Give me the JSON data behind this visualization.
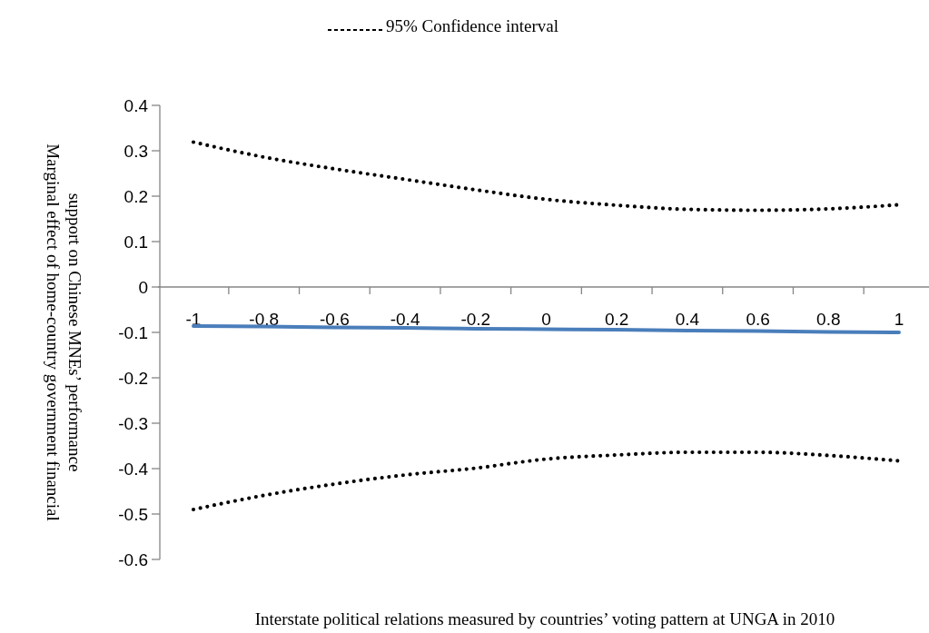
{
  "chart_data": {
    "type": "line",
    "xlabel": "Interstate political relations measured by countries’ voting pattern at UNGA in 2010",
    "ylabel": "Marginal effect of home-country government financial\nsupport on Chinese MNEs’ performance",
    "categories": [
      "-1",
      "-0.8",
      "-0.6",
      "-0.4",
      "-0.2",
      "0",
      "0.2",
      "0.4",
      "0.6",
      "0.8",
      "1"
    ],
    "series": [
      {
        "color": "#4a7ebb",
        "line_style": "solid",
        "values": [
          -0.086,
          -0.087,
          -0.089,
          -0.09,
          -0.092,
          -0.093,
          -0.094,
          -0.096,
          -0.097,
          -0.099,
          -0.1
        ]
      },
      {
        "name": "95% Confidence interval",
        "color": "#000000",
        "line_style": "dotted",
        "values": [
          0.319,
          0.286,
          0.26,
          0.237,
          0.214,
          0.193,
          0.18,
          0.171,
          0.169,
          0.172,
          0.181
        ]
      },
      {
        "color": "#000000",
        "line_style": "dotted",
        "values": [
          -0.49,
          -0.459,
          -0.434,
          -0.414,
          -0.399,
          -0.379,
          -0.37,
          -0.364,
          -0.364,
          -0.371,
          -0.383
        ]
      }
    ],
    "ylim": [
      -0.6,
      0.4
    ],
    "yticks": [
      -0.6,
      -0.5,
      -0.4,
      -0.3,
      -0.2,
      -0.1,
      0,
      0.1,
      0.2,
      0.3,
      0.4
    ],
    "marker": "none",
    "grid": false,
    "legend": "top"
  }
}
